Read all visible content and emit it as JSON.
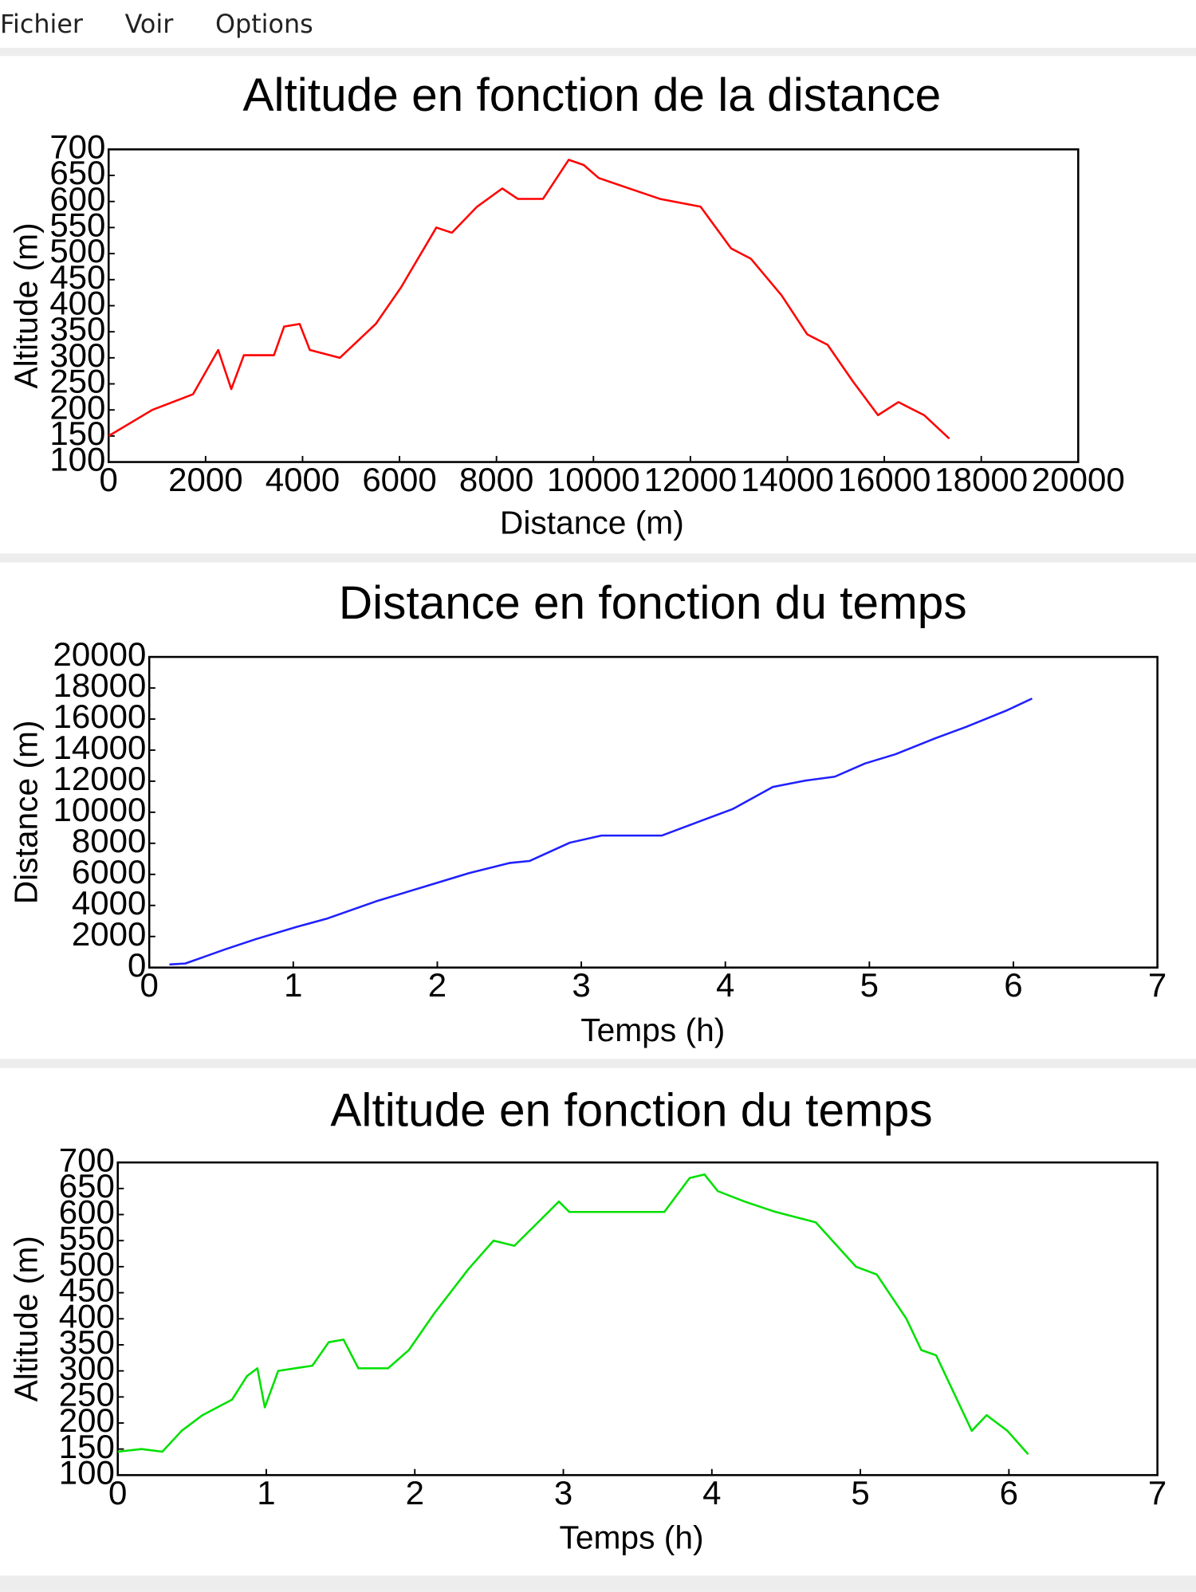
{
  "menu": [
    "Fichier",
    "Voir",
    "Options"
  ],
  "chart_data": [
    {
      "type": "line",
      "title": "Altitude en fonction de la distance",
      "x_label": "Distance (m)",
      "y_label": "Altitude (m)",
      "color": "#ff0000",
      "x": [
        0,
        900,
        1740,
        2260,
        2530,
        2790,
        3410,
        3620,
        3940,
        4150,
        4770,
        5510,
        6030,
        6760,
        7080,
        7600,
        8120,
        8440,
        8960,
        9490,
        9800,
        10110,
        10740,
        11370,
        12210,
        12840,
        13250,
        13880,
        14410,
        14830,
        15350,
        15870,
        16290,
        16820,
        17340
      ],
      "values": [
        150,
        200,
        230,
        315,
        240,
        305,
        305,
        360,
        365,
        315,
        300,
        365,
        435,
        550,
        540,
        590,
        625,
        605,
        605,
        680,
        670,
        645,
        625,
        605,
        590,
        510,
        490,
        420,
        345,
        325,
        255,
        190,
        215,
        190,
        145
      ],
      "xlim": [
        0,
        20000
      ],
      "xticks": [
        0,
        2000,
        4000,
        6000,
        8000,
        10000,
        12000,
        14000,
        16000,
        18000,
        20000
      ],
      "ylim": [
        100,
        700
      ],
      "yticks": [
        100,
        150,
        200,
        250,
        300,
        350,
        400,
        450,
        500,
        550,
        600,
        650,
        700
      ]
    },
    {
      "type": "line",
      "title": "Distance en fonction du temps",
      "x_label": "Temps (h)",
      "y_label": "Distance (m)",
      "color": "#2020ff",
      "x": [
        0.14,
        0.25,
        0.53,
        0.74,
        1.02,
        1.23,
        1.59,
        1.94,
        2.22,
        2.5,
        2.64,
        2.92,
        3.14,
        3.56,
        3.84,
        4.05,
        4.33,
        4.55,
        4.76,
        4.97,
        5.18,
        5.46,
        5.67,
        5.95,
        6.13
      ],
      "values": [
        200,
        260,
        1180,
        1830,
        2610,
        3140,
        4310,
        5290,
        6080,
        6730,
        6860,
        8040,
        8500,
        8500,
        9480,
        10200,
        11630,
        12030,
        12290,
        13140,
        13730,
        14770,
        15490,
        16540,
        17320
      ],
      "xlim": [
        0,
        7
      ],
      "xticks": [
        0,
        1,
        2,
        3,
        4,
        5,
        6,
        7
      ],
      "ylim": [
        0,
        20000
      ],
      "yticks": [
        0,
        2000,
        4000,
        6000,
        8000,
        10000,
        12000,
        14000,
        16000,
        18000,
        20000
      ]
    },
    {
      "type": "line",
      "title": "Altitude en fonction du temps",
      "x_label": "Temps (h)",
      "y_label": "Altitude (m)",
      "color": "#00e000",
      "x": [
        0,
        0.16,
        0.3,
        0.43,
        0.57,
        0.77,
        0.87,
        0.94,
        0.99,
        1.08,
        1.31,
        1.42,
        1.52,
        1.62,
        1.82,
        1.96,
        2.13,
        2.36,
        2.53,
        2.67,
        2.9,
        2.97,
        3.04,
        3.55,
        3.68,
        3.85,
        3.95,
        4.04,
        4.22,
        4.43,
        4.7,
        4.97,
        5.11,
        5.31,
        5.41,
        5.51,
        5.75,
        5.85,
        5.99,
        6.13
      ],
      "values": [
        145,
        150,
        145,
        185,
        215,
        245,
        290,
        305,
        230,
        300,
        310,
        355,
        360,
        305,
        305,
        340,
        410,
        495,
        550,
        540,
        605,
        625,
        605,
        605,
        605,
        670,
        677,
        645,
        625,
        605,
        585,
        500,
        485,
        400,
        340,
        330,
        185,
        215,
        185,
        140
      ],
      "xlim": [
        0,
        7
      ],
      "xticks": [
        0,
        1,
        2,
        3,
        4,
        5,
        6,
        7
      ],
      "ylim": [
        100,
        700
      ],
      "yticks": [
        100,
        150,
        200,
        250,
        300,
        350,
        400,
        450,
        500,
        550,
        600,
        650,
        700
      ]
    }
  ]
}
